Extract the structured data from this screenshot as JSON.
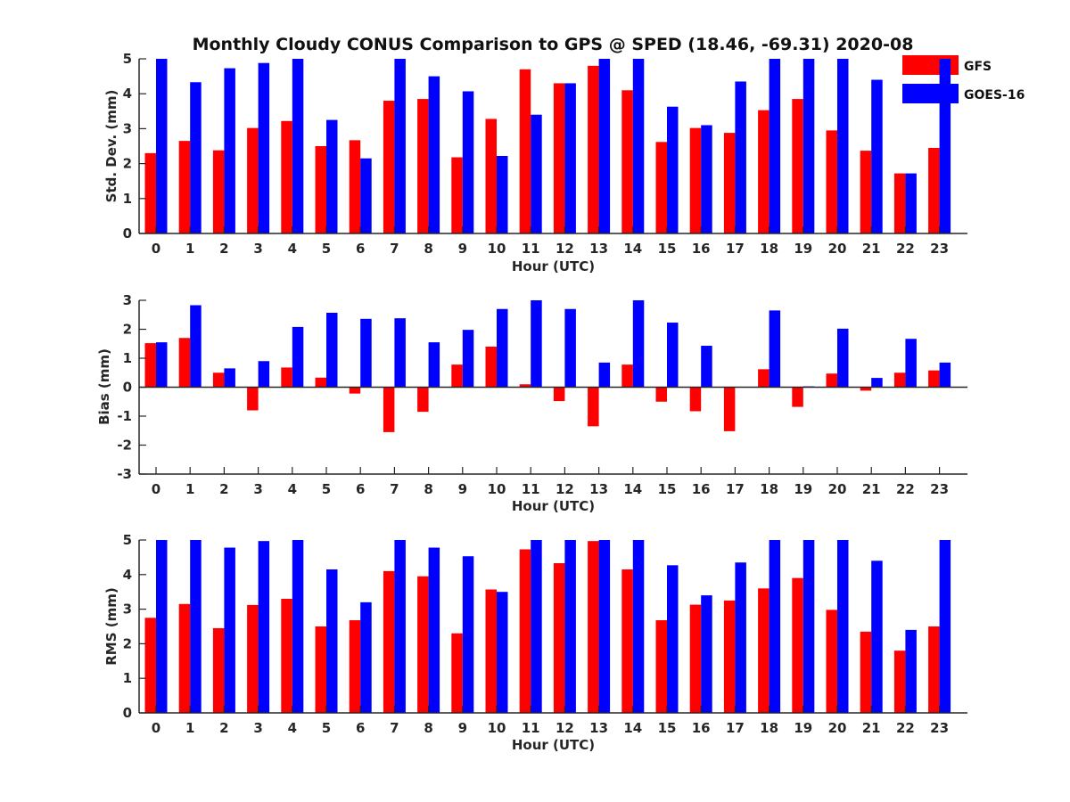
{
  "figure_title": "Monthly Cloudy CONUS Comparison to GPS @ SPED (18.46, -69.31) 2020-08",
  "legend": [
    {
      "name": "GFS",
      "color": "#ff0000"
    },
    {
      "name": "GOES-16",
      "color": "#0000ff"
    }
  ],
  "chart_data": [
    {
      "type": "bar",
      "title": "Monthly Cloudy CONUS Comparison to GPS @ SPED (18.46, -69.31) 2020-08",
      "xlabel": "Hour (UTC)",
      "ylabel": "Std. Dev. (mm)",
      "ylim": [
        0,
        5
      ],
      "yticks": [
        "0",
        "1",
        "2",
        "3",
        "4",
        "5"
      ],
      "categories": [
        "0",
        "1",
        "2",
        "3",
        "4",
        "5",
        "6",
        "7",
        "8",
        "9",
        "10",
        "11",
        "12",
        "13",
        "14",
        "15",
        "16",
        "17",
        "18",
        "19",
        "20",
        "21",
        "22",
        "23"
      ],
      "series": [
        {
          "name": "GFS",
          "color": "#ff0000",
          "values": [
            2.3,
            2.65,
            2.38,
            3.02,
            3.22,
            2.5,
            2.67,
            3.8,
            3.85,
            2.18,
            3.28,
            4.7,
            4.3,
            4.8,
            4.1,
            2.62,
            3.02,
            2.88,
            3.53,
            3.85,
            2.95,
            2.37,
            1.72,
            2.45
          ]
        },
        {
          "name": "GOES-16",
          "color": "#0000ff",
          "values": [
            5.0,
            4.33,
            4.73,
            4.88,
            5.0,
            3.25,
            2.15,
            5.0,
            4.5,
            4.07,
            2.22,
            3.4,
            4.3,
            5.0,
            5.0,
            3.63,
            3.1,
            4.35,
            5.0,
            5.0,
            5.0,
            4.4,
            1.72,
            5.0
          ]
        }
      ]
    },
    {
      "type": "bar",
      "xlabel": "Hour (UTC)",
      "ylabel": "Bias (mm)",
      "ylim": [
        -3,
        3
      ],
      "yticks": [
        "-3",
        "-2",
        "-1",
        "0",
        "1",
        "2",
        "3"
      ],
      "categories": [
        "0",
        "1",
        "2",
        "3",
        "4",
        "5",
        "6",
        "7",
        "8",
        "9",
        "10",
        "11",
        "12",
        "13",
        "14",
        "15",
        "16",
        "17",
        "18",
        "19",
        "20",
        "21",
        "22",
        "23"
      ],
      "series": [
        {
          "name": "GFS",
          "color": "#ff0000",
          "values": [
            1.52,
            1.7,
            0.5,
            -0.8,
            0.68,
            0.33,
            -0.22,
            -1.55,
            -0.85,
            0.78,
            1.4,
            0.1,
            -0.48,
            -1.35,
            0.78,
            -0.5,
            -0.83,
            -1.52,
            0.62,
            -0.68,
            0.47,
            -0.12,
            0.5,
            0.58
          ]
        },
        {
          "name": "GOES-16",
          "color": "#0000ff",
          "values": [
            1.55,
            2.83,
            0.65,
            0.9,
            2.08,
            2.57,
            2.36,
            2.38,
            1.55,
            1.98,
            2.7,
            3.0,
            2.7,
            0.85,
            3.0,
            2.23,
            1.43,
            0.0,
            2.65,
            0.03,
            2.02,
            0.32,
            1.67,
            0.85
          ]
        }
      ]
    },
    {
      "type": "bar",
      "xlabel": "Hour (UTC)",
      "ylabel": "RMS (mm)",
      "ylim": [
        0,
        5
      ],
      "yticks": [
        "0",
        "1",
        "2",
        "3",
        "4",
        "5"
      ],
      "categories": [
        "0",
        "1",
        "2",
        "3",
        "4",
        "5",
        "6",
        "7",
        "8",
        "9",
        "10",
        "11",
        "12",
        "13",
        "14",
        "15",
        "16",
        "17",
        "18",
        "19",
        "20",
        "21",
        "22",
        "23"
      ],
      "series": [
        {
          "name": "GFS",
          "color": "#ff0000",
          "values": [
            2.75,
            3.15,
            2.45,
            3.12,
            3.3,
            2.5,
            2.68,
            4.1,
            3.95,
            2.3,
            3.57,
            4.73,
            4.33,
            4.97,
            4.15,
            2.68,
            3.13,
            3.25,
            3.6,
            3.9,
            2.98,
            2.35,
            1.8,
            2.5
          ]
        },
        {
          "name": "GOES-16",
          "color": "#0000ff",
          "values": [
            5.0,
            5.0,
            4.78,
            4.97,
            5.0,
            4.15,
            3.2,
            5.0,
            4.78,
            4.53,
            3.5,
            5.0,
            5.0,
            5.0,
            5.0,
            4.27,
            3.4,
            4.35,
            5.0,
            5.0,
            5.0,
            4.4,
            2.4,
            5.0
          ]
        }
      ]
    }
  ]
}
